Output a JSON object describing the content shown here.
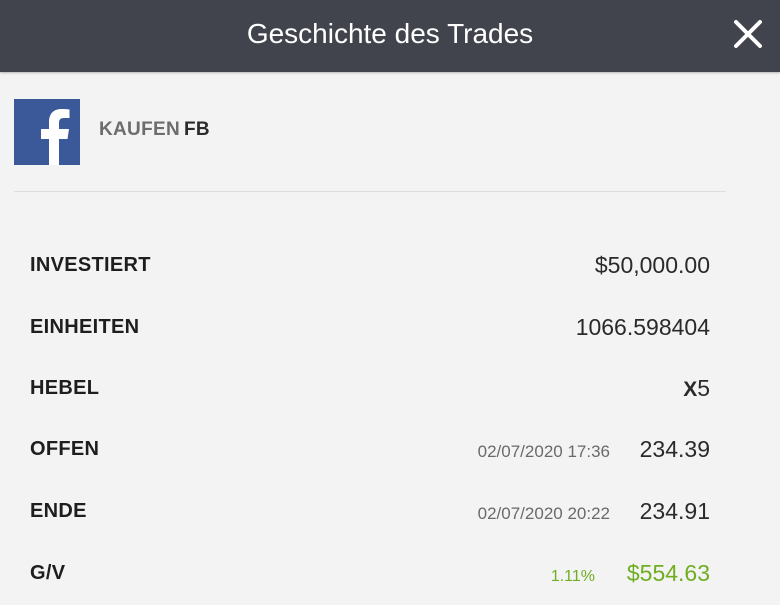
{
  "header": {
    "title": "Geschichte des Trades",
    "close_icon": "close-icon"
  },
  "asset": {
    "logo_icon": "facebook-logo",
    "logo_color": "#3b5998",
    "action": "KAUFEN",
    "symbol": "FB"
  },
  "details": {
    "invested": {
      "label": "INVESTIERT",
      "value": "$50,000.00"
    },
    "units": {
      "label": "EINHEITEN",
      "value": "1066.598404"
    },
    "leverage": {
      "label": "HEBEL",
      "prefix": "X",
      "value": "5"
    },
    "open": {
      "label": "OFFEN",
      "datetime": "02/07/2020 17:36",
      "value": "234.39"
    },
    "close": {
      "label": "ENDE",
      "datetime": "02/07/2020 20:22",
      "value": "234.91"
    },
    "pnl": {
      "label": "G/V",
      "percent": "1.11%",
      "value": "$554.63",
      "color": "#6fae22"
    }
  }
}
